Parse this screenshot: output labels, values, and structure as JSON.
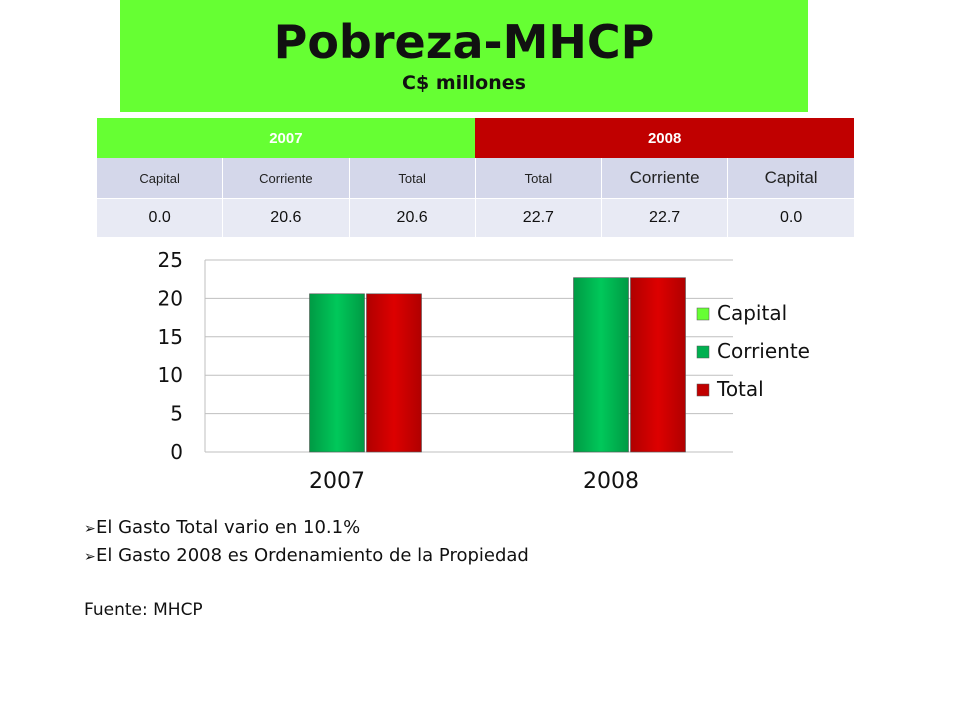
{
  "header": {
    "title": "Pobreza-MHCP",
    "subtitle": "C$ millones"
  },
  "table": {
    "years": [
      "2007",
      "2008"
    ],
    "headers": [
      "Capital",
      "Corriente",
      "Total",
      "Total",
      "Corriente",
      "Capital"
    ],
    "values": [
      "0.0",
      "20.6",
      "20.6",
      "22.7",
      "22.7",
      "0.0"
    ]
  },
  "chart_data": {
    "type": "bar",
    "categories": [
      "2007",
      "2008"
    ],
    "series": [
      {
        "name": "Capital",
        "values": [
          0.0,
          0.0
        ],
        "color": "#66ff33"
      },
      {
        "name": "Corriente",
        "values": [
          20.6,
          22.7
        ],
        "color": "#00b050"
      },
      {
        "name": "Total",
        "values": [
          20.6,
          22.7
        ],
        "color": "#c00000"
      }
    ],
    "yticks": [
      "0",
      "5",
      "10",
      "15",
      "20",
      "25"
    ],
    "ylim": [
      0,
      25
    ],
    "grid": true,
    "legend": "right"
  },
  "bullets": [
    "El Gasto Total vario en 10.1%",
    "El Gasto 2008 es Ordenamiento de la Propiedad"
  ],
  "source": "Fuente: MHCP"
}
